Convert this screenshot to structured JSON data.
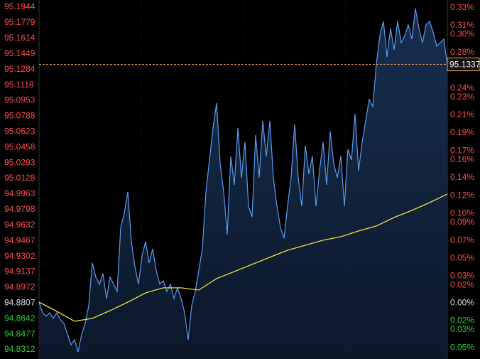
{
  "chart_data": {
    "type": "line",
    "ylim": [
      94.8312,
      95.1944
    ],
    "yticks": [
      95.1944,
      95.1779,
      95.1614,
      95.1449,
      95.1284,
      95.1118,
      95.0953,
      95.0788,
      95.0623,
      95.0458,
      95.0293,
      95.0128,
      94.9963,
      94.9798,
      94.9632,
      94.9467,
      94.9302,
      94.9137,
      94.8972,
      94.8807,
      94.8642,
      94.8477,
      94.8312
    ],
    "y2lim": [
      -0.0522,
      0.3306
    ],
    "y2ticks": [
      {
        "value": 0.33,
        "label": "0.33%"
      },
      {
        "value": 0.31,
        "label": "0.31%"
      },
      {
        "value": 0.3,
        "label": "0.30%"
      },
      {
        "value": 0.28,
        "label": "0.28%"
      },
      {
        "value": 0.24,
        "label": "0.24%"
      },
      {
        "value": 0.23,
        "label": "0.23%"
      },
      {
        "value": 0.21,
        "label": "0.21%"
      },
      {
        "value": 0.19,
        "label": "0.19%"
      },
      {
        "value": 0.17,
        "label": "0.17%"
      },
      {
        "value": 0.16,
        "label": "0.16%"
      },
      {
        "value": 0.14,
        "label": "0.14%"
      },
      {
        "value": 0.12,
        "label": "0.12%"
      },
      {
        "value": 0.1,
        "label": "0.10%"
      },
      {
        "value": 0.09,
        "label": "0.09%"
      },
      {
        "value": 0.07,
        "label": "0.07%"
      },
      {
        "value": 0.05,
        "label": "0.05%"
      },
      {
        "value": 0.03,
        "label": "0.03%"
      },
      {
        "value": 0.02,
        "label": "0.02%"
      },
      {
        "value": 0.0,
        "label": "0.00%"
      },
      {
        "value": -0.02,
        "label": "0.02%"
      },
      {
        "value": -0.03,
        "label": "0.03%"
      },
      {
        "value": -0.05,
        "label": "0.05%"
      }
    ],
    "baseline": 94.8807,
    "up_color": "#ff4d4d",
    "down_color": "#33cc33",
    "flat_color": "#dddddd",
    "last_price": 95.1337,
    "last_price_color": "#f0a050",
    "series": [
      {
        "color": "#5b9bf0",
        "values": [
          94.8817,
          94.8704,
          94.8667,
          94.8704,
          94.8644,
          94.8704,
          94.8629,
          94.8591,
          94.8478,
          94.8365,
          94.8418,
          94.829,
          94.8478,
          94.8591,
          94.878,
          94.9232,
          94.9081,
          94.9006,
          94.9119,
          94.8855,
          94.9081,
          94.9006,
          94.893,
          94.9608,
          94.9759,
          94.9985,
          94.9458,
          94.9194,
          94.9006,
          94.9307,
          94.9458,
          94.9232,
          94.9382,
          94.9156,
          94.9006,
          94.9043,
          94.893,
          94.9006,
          94.8855,
          94.8968,
          94.8855,
          94.8704,
          94.8418,
          94.878,
          94.893,
          94.9156,
          94.9382,
          94.9985,
          95.0324,
          95.0663,
          95.0927,
          95.0287,
          94.9985,
          94.9533,
          95.0362,
          95.0061,
          95.0663,
          95.0136,
          95.0513,
          94.9834,
          94.9722,
          95.0588,
          95.0136,
          95.0739,
          95.0362,
          95.0739,
          95.0136,
          94.9834,
          94.9608,
          94.9495,
          94.9834,
          95.0136,
          95.0701,
          95.0136,
          94.9834,
          95.0475,
          95.0174,
          95.0362,
          94.9834,
          95.0211,
          95.0513,
          95.0061,
          95.0626,
          95.0287,
          95.0136,
          95.0362,
          94.9834,
          95.0437,
          95.0324,
          95.0814,
          95.0211,
          95.0513,
          95.0739,
          95.0965,
          95.0889,
          95.1341,
          95.1643,
          95.1793,
          95.1417,
          95.1718,
          95.1492,
          95.1793,
          95.1567,
          95.1643,
          95.1756,
          95.1605,
          95.1929,
          95.1718,
          95.1567,
          95.1756,
          95.1793,
          95.168,
          95.153,
          95.1567,
          95.1605,
          95.1337
        ]
      },
      {
        "color": "#e8e040",
        "values": [
          94.8817,
          94.8719,
          94.8614,
          94.8644,
          94.8727,
          94.8817,
          94.8915,
          94.8968,
          94.8968,
          94.8945,
          94.9066,
          94.9141,
          94.9217,
          94.9292,
          94.9367,
          94.942,
          94.9473,
          94.951,
          94.9571,
          94.9624,
          94.9714,
          94.9789,
          94.9872,
          94.9963
        ]
      }
    ]
  }
}
